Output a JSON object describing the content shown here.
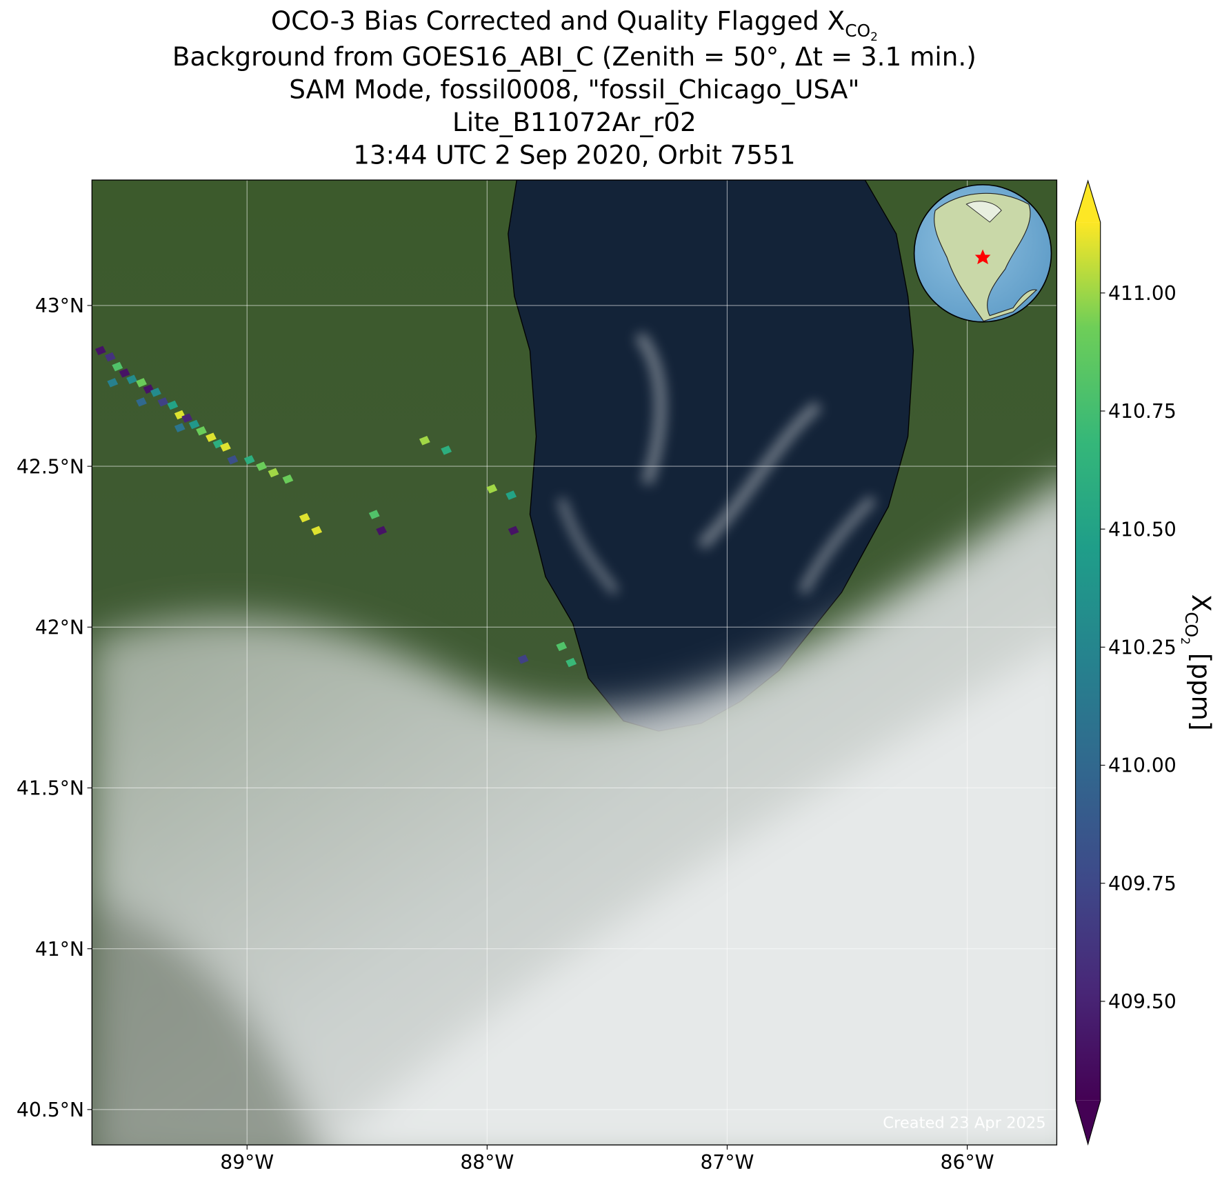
{
  "map": {
    "title": {
      "main": "OCO-3 Bias Corrected and Quality Flagged X",
      "sub": "CO",
      "subsub": "2"
    },
    "subtitles": [
      "Background from GOES16_ABI_C (Zenith = 50$^\\circ$, Δt =  3.1 min.)",
      "SAM Mode, fossil0008, \"fossil_Chicago_USA\"",
      "Lite_B11072Ar_r02",
      "13:44 UTC 2 Sep 2020, Orbit 7551"
    ],
    "xlim": [
      -89.646,
      -85.627
    ],
    "ylim": [
      40.39,
      43.39
    ],
    "xticks": [
      {
        "value": -89,
        "label": "89°W"
      },
      {
        "value": -88,
        "label": "88°W"
      },
      {
        "value": -87,
        "label": "87°W"
      },
      {
        "value": -86,
        "label": "86°W"
      }
    ],
    "yticks": [
      {
        "value": 43,
        "label": "43°N"
      },
      {
        "value": 42.5,
        "label": "42.5°N"
      },
      {
        "value": 42,
        "label": "42°N"
      },
      {
        "value": 41.5,
        "label": "41.5°N"
      },
      {
        "value": 41,
        "label": "41°N"
      },
      {
        "value": 40.5,
        "label": "40.5°N"
      }
    ],
    "grid": true,
    "colorbar": {
      "label": {
        "main": "X",
        "sub": "CO",
        "subsub": "2",
        "unit": " [ppm]"
      },
      "clim": [
        409.29,
        411.15
      ],
      "ticks": [
        {
          "value": 409.5,
          "label": "409.50"
        },
        {
          "value": 409.75,
          "label": "409.75"
        },
        {
          "value": 410,
          "label": "410.00"
        },
        {
          "value": 410.25,
          "label": "410.25"
        },
        {
          "value": 410.5,
          "label": "410.50"
        },
        {
          "value": 410.75,
          "label": "410.75"
        },
        {
          "value": 411,
          "label": "411.00"
        }
      ]
    },
    "soundings": [
      {
        "lon": -89.61,
        "lat": 42.86,
        "xco2": 409.4
      },
      {
        "lon": -89.57,
        "lat": 42.84,
        "xco2": 409.6
      },
      {
        "lon": -89.54,
        "lat": 42.81,
        "xco2": 410.8
      },
      {
        "lon": -89.51,
        "lat": 42.79,
        "xco2": 409.4
      },
      {
        "lon": -89.48,
        "lat": 42.77,
        "xco2": 410.3
      },
      {
        "lon": -89.44,
        "lat": 42.76,
        "xco2": 410.9
      },
      {
        "lon": -89.41,
        "lat": 42.74,
        "xco2": 409.4
      },
      {
        "lon": -89.38,
        "lat": 42.73,
        "xco2": 410.3
      },
      {
        "lon": -89.35,
        "lat": 42.7,
        "xco2": 409.7
      },
      {
        "lon": -89.31,
        "lat": 42.69,
        "xco2": 410.5
      },
      {
        "lon": -89.28,
        "lat": 42.66,
        "xco2": 411.1
      },
      {
        "lon": -89.25,
        "lat": 42.65,
        "xco2": 409.5
      },
      {
        "lon": -89.22,
        "lat": 42.63,
        "xco2": 410.4
      },
      {
        "lon": -89.19,
        "lat": 42.61,
        "xco2": 410.9
      },
      {
        "lon": -89.15,
        "lat": 42.59,
        "xco2": 411.1
      },
      {
        "lon": -89.12,
        "lat": 42.57,
        "xco2": 410.6
      },
      {
        "lon": -89.09,
        "lat": 42.56,
        "xco2": 411.1
      },
      {
        "lon": -89.06,
        "lat": 42.52,
        "xco2": 409.8
      },
      {
        "lon": -88.99,
        "lat": 42.52,
        "xco2": 410.6
      },
      {
        "lon": -88.94,
        "lat": 42.5,
        "xco2": 410.9
      },
      {
        "lon": -88.89,
        "lat": 42.48,
        "xco2": 411.0
      },
      {
        "lon": -88.83,
        "lat": 42.46,
        "xco2": 410.9
      },
      {
        "lon": -88.76,
        "lat": 42.34,
        "xco2": 411.1
      },
      {
        "lon": -88.71,
        "lat": 42.3,
        "xco2": 411.1
      },
      {
        "lon": -88.47,
        "lat": 42.35,
        "xco2": 410.8
      },
      {
        "lon": -88.44,
        "lat": 42.3,
        "xco2": 409.4
      },
      {
        "lon": -88.26,
        "lat": 42.58,
        "xco2": 411.0
      },
      {
        "lon": -88.17,
        "lat": 42.55,
        "xco2": 410.6
      },
      {
        "lon": -87.98,
        "lat": 42.43,
        "xco2": 411.0
      },
      {
        "lon": -87.9,
        "lat": 42.41,
        "xco2": 410.5
      },
      {
        "lon": -87.89,
        "lat": 42.3,
        "xco2": 409.4
      },
      {
        "lon": -87.69,
        "lat": 41.94,
        "xco2": 410.8
      },
      {
        "lon": -87.65,
        "lat": 41.89,
        "xco2": 410.7
      },
      {
        "lon": -87.85,
        "lat": 41.9,
        "xco2": 409.7
      },
      {
        "lon": -89.56,
        "lat": 42.76,
        "xco2": 410.2
      },
      {
        "lon": -89.44,
        "lat": 42.7,
        "xco2": 410.0
      },
      {
        "lon": -89.28,
        "lat": 42.62,
        "xco2": 410.1
      }
    ],
    "credit": "Created 23 Apr 2025"
  }
}
